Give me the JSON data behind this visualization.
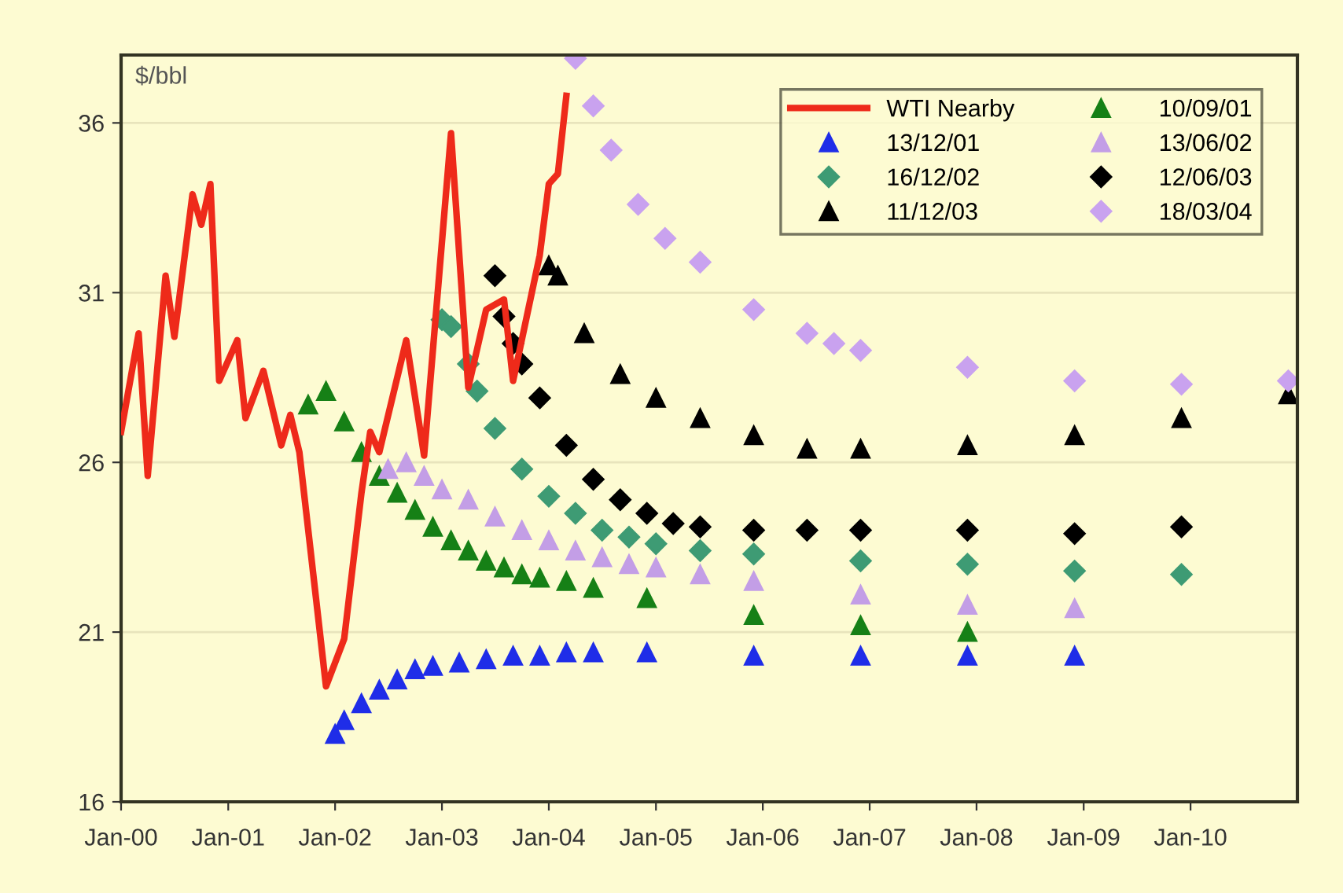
{
  "chart_data": {
    "type": "scatter",
    "ylabel": "$/bbl",
    "xlim": [
      "2000-01",
      "2011-01"
    ],
    "ylim": [
      16,
      38
    ],
    "xticks": [
      {
        "value": "2000-01",
        "label": "Jan-00"
      },
      {
        "value": "2001-01",
        "label": "Jan-01"
      },
      {
        "value": "2002-01",
        "label": "Jan-02"
      },
      {
        "value": "2003-01",
        "label": "Jan-03"
      },
      {
        "value": "2004-01",
        "label": "Jan-04"
      },
      {
        "value": "2005-01",
        "label": "Jan-05"
      },
      {
        "value": "2006-01",
        "label": "Jan-06"
      },
      {
        "value": "2007-01",
        "label": "Jan-07"
      },
      {
        "value": "2008-01",
        "label": "Jan-08"
      },
      {
        "value": "2009-01",
        "label": "Jan-09"
      },
      {
        "value": "2010-01",
        "label": "Jan-10"
      }
    ],
    "yticks": [
      16,
      21,
      26,
      31,
      36
    ],
    "grid": "y",
    "legend": "top right",
    "series": [
      {
        "name": "WTI Nearby",
        "type": "line",
        "marker": "none",
        "line_style": "solid",
        "color": "#ee2a1a",
        "x": [
          "2000-01",
          "2000-03",
          "2000-04",
          "2000-06",
          "2000-07",
          "2000-09",
          "2000-10",
          "2000-11",
          "2000-12",
          "2001-02",
          "2001-03",
          "2001-05",
          "2001-07",
          "2001-08",
          "2001-09",
          "2001-12",
          "2002-02",
          "2002-04",
          "2002-05",
          "2002-06",
          "2002-09",
          "2002-11",
          "2003-02",
          "2003-04",
          "2003-06",
          "2003-08",
          "2003-09",
          "2003-12",
          "2004-01",
          "2004-02",
          "2004-03"
        ],
        "values": [
          26.9,
          29.8,
          25.6,
          31.5,
          29.7,
          33.9,
          33.0,
          34.2,
          28.4,
          29.6,
          27.3,
          28.7,
          26.5,
          27.4,
          26.3,
          19.4,
          20.8,
          25.1,
          26.9,
          26.3,
          29.6,
          26.2,
          35.7,
          28.2,
          30.5,
          30.8,
          28.4,
          32.1,
          34.2,
          34.5,
          36.8
        ]
      },
      {
        "name": "13/12/01",
        "marker": "triangle",
        "color": "#1f2de8",
        "x": [
          "2002-01",
          "2002-02",
          "2002-04",
          "2002-06",
          "2002-08",
          "2002-10",
          "2002-12",
          "2003-03",
          "2003-06",
          "2003-09",
          "2003-12",
          "2004-03",
          "2004-06",
          "2004-12",
          "2005-12",
          "2006-12",
          "2007-12",
          "2008-12"
        ],
        "values": [
          18.0,
          18.4,
          18.9,
          19.3,
          19.6,
          19.9,
          20.0,
          20.1,
          20.2,
          20.3,
          20.3,
          20.4,
          20.4,
          20.4,
          20.3,
          20.3,
          20.3,
          20.3
        ]
      },
      {
        "name": "16/12/02",
        "marker": "diamond",
        "color": "#3e9b74",
        "x": [
          "2003-01",
          "2003-02",
          "2003-04",
          "2003-05",
          "2003-07",
          "2003-10",
          "2004-01",
          "2004-04",
          "2004-07",
          "2004-10",
          "2005-01",
          "2005-06",
          "2005-12",
          "2006-12",
          "2007-12",
          "2008-12",
          "2009-12"
        ],
        "values": [
          30.2,
          30.0,
          28.9,
          28.1,
          27.0,
          25.8,
          25.0,
          24.5,
          24.0,
          23.8,
          23.6,
          23.4,
          23.3,
          23.1,
          23.0,
          22.8,
          22.7
        ]
      },
      {
        "name": "11/12/03",
        "marker": "triangle",
        "color": "#000000",
        "x": [
          "2004-01",
          "2004-02",
          "2004-05",
          "2004-09",
          "2005-01",
          "2005-06",
          "2005-12",
          "2006-06",
          "2006-12",
          "2007-12",
          "2008-12",
          "2009-12",
          "2010-12"
        ],
        "values": [
          31.8,
          31.5,
          29.8,
          28.6,
          27.9,
          27.3,
          26.8,
          26.4,
          26.4,
          26.5,
          26.8,
          27.3,
          28.0
        ]
      },
      {
        "name": "10/09/01",
        "marker": "triangle",
        "color": "#168016",
        "x": [
          "2001-10",
          "2001-12",
          "2002-02",
          "2002-04",
          "2002-06",
          "2002-08",
          "2002-10",
          "2002-12",
          "2003-02",
          "2003-04",
          "2003-06",
          "2003-08",
          "2003-10",
          "2003-12",
          "2004-03",
          "2004-06",
          "2004-12",
          "2005-12",
          "2006-12",
          "2007-12"
        ],
        "values": [
          27.7,
          28.1,
          27.2,
          26.3,
          25.6,
          25.1,
          24.6,
          24.1,
          23.7,
          23.4,
          23.1,
          22.9,
          22.7,
          22.6,
          22.5,
          22.3,
          22.0,
          21.5,
          21.2,
          21.0
        ]
      },
      {
        "name": "13/06/02",
        "marker": "triangle",
        "color": "#c39ee6",
        "x": [
          "2002-07",
          "2002-09",
          "2002-11",
          "2003-01",
          "2003-04",
          "2003-07",
          "2003-10",
          "2004-01",
          "2004-04",
          "2004-07",
          "2004-10",
          "2005-01",
          "2005-06",
          "2005-12",
          "2006-12",
          "2007-12",
          "2008-12"
        ],
        "values": [
          25.8,
          26.0,
          25.6,
          25.2,
          24.9,
          24.4,
          24.0,
          23.7,
          23.4,
          23.2,
          23.0,
          22.9,
          22.7,
          22.5,
          22.1,
          21.8,
          21.7
        ]
      },
      {
        "name": "12/06/03",
        "marker": "diamond",
        "color": "#000000",
        "x": [
          "2003-07",
          "2003-08",
          "2003-09",
          "2003-10",
          "2003-12",
          "2004-03",
          "2004-06",
          "2004-09",
          "2004-12",
          "2005-03",
          "2005-06",
          "2005-12",
          "2006-06",
          "2006-12",
          "2007-12",
          "2008-12",
          "2009-12"
        ],
        "values": [
          31.5,
          30.3,
          29.5,
          28.9,
          27.9,
          26.5,
          25.5,
          24.9,
          24.5,
          24.2,
          24.1,
          24.0,
          24.0,
          24.0,
          24.0,
          23.9,
          24.1
        ]
      },
      {
        "name": "18/03/04",
        "marker": "diamond",
        "color": "#c9a2ef",
        "x": [
          "2004-04",
          "2004-06",
          "2004-08",
          "2004-11",
          "2005-02",
          "2005-06",
          "2005-12",
          "2006-06",
          "2006-09",
          "2006-12",
          "2007-12",
          "2008-12",
          "2009-12",
          "2010-12"
        ],
        "values": [
          37.9,
          36.5,
          35.2,
          33.6,
          32.6,
          31.9,
          30.5,
          29.8,
          29.5,
          29.3,
          28.8,
          28.4,
          28.3,
          28.4
        ]
      }
    ]
  }
}
